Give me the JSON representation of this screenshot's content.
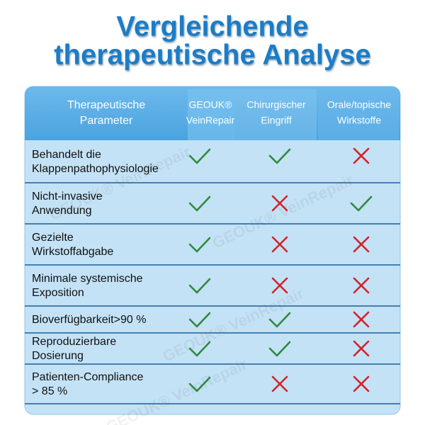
{
  "title": [
    "Vergleichende",
    "therapeutische Analyse"
  ],
  "watermark": "GEOUK® VeinRepair",
  "table": {
    "headers": [
      [
        "Therapeutische",
        "Parameter"
      ],
      [
        "GEOUK®",
        "VeinRepair"
      ],
      [
        "Chirurgischer",
        "Eingriff"
      ],
      [
        "Orale/topische",
        "Wirkstoffe"
      ]
    ],
    "rows": [
      {
        "label": [
          "Behandelt die",
          "Klappenpathophysiologie"
        ],
        "values": [
          true,
          true,
          false
        ]
      },
      {
        "label": [
          "Nicht-invasive",
          "Anwendung"
        ],
        "values": [
          true,
          false,
          true
        ]
      },
      {
        "label": [
          "Gezielte",
          "Wirkstoffabgabe"
        ],
        "values": [
          true,
          false,
          false
        ]
      },
      {
        "label": [
          "Minimale systemische",
          "Exposition"
        ],
        "values": [
          true,
          false,
          false
        ]
      },
      {
        "label": [
          "Bioverfügbarkeit>90 %"
        ],
        "values": [
          true,
          true,
          false
        ]
      },
      {
        "label": [
          "Reproduzierbare",
          "Dosierung"
        ],
        "values": [
          true,
          true,
          false
        ]
      },
      {
        "label": [
          "Patienten-Compliance",
          "> 85 %"
        ],
        "values": [
          true,
          false,
          false
        ]
      }
    ]
  }
}
